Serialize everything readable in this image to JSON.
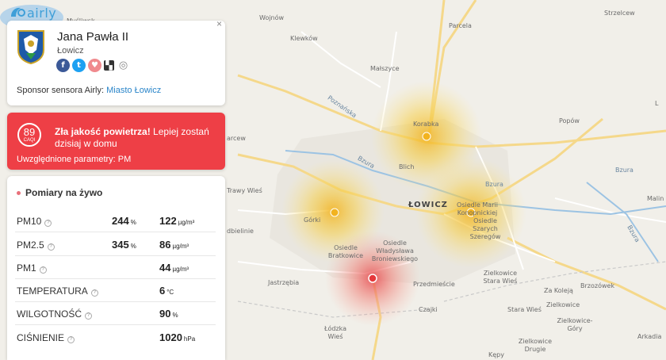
{
  "app": {
    "logo_text": "airly"
  },
  "station": {
    "name": "Jana Pawła II",
    "city": "Łowicz",
    "sponsor_label": "Sponsor sensora Airly:",
    "sponsor_name": "Miasto Łowicz",
    "close": "×",
    "socials": [
      {
        "icon": "facebook-icon",
        "glyph": "f",
        "color": "#3b5998"
      },
      {
        "icon": "twitter-icon",
        "glyph": "t",
        "color": "#1da1f2"
      },
      {
        "icon": "heart-icon",
        "glyph": "♥",
        "color": "#f08a8e"
      },
      {
        "icon": "qr-icon",
        "glyph": "▚",
        "color": "#333333"
      },
      {
        "icon": "locate-icon",
        "glyph": "◎",
        "color": "#ffffff"
      }
    ]
  },
  "alert": {
    "caqi_value": "89",
    "caqi_label": "CAQI",
    "headline": "Zła jakość powietrza!",
    "message": "Lepiej zostań dzisiaj w domu",
    "params": "Uwzględnione parametry: PM",
    "color": "#ee3f46"
  },
  "live": {
    "title": "Pomiary na żywo",
    "rows": [
      {
        "name": "PM10",
        "percent": "244",
        "percent_unit": "%",
        "value": "122",
        "unit": "µg/m³"
      },
      {
        "name": "PM2.5",
        "percent": "345",
        "percent_unit": "%",
        "value": "86",
        "unit": "µg/m³"
      },
      {
        "name": "PM1",
        "percent": "",
        "percent_unit": "",
        "value": "44",
        "unit": "µg/m³"
      },
      {
        "name": "TEMPERATURA",
        "percent": "",
        "percent_unit": "",
        "value": "6",
        "unit": "°C"
      },
      {
        "name": "WILGOTNOŚĆ",
        "percent": "",
        "percent_unit": "",
        "value": "90",
        "unit": "%"
      },
      {
        "name": "CIŚNIENIE",
        "percent": "",
        "percent_unit": "",
        "value": "1020",
        "unit": "hPa"
      }
    ]
  },
  "map": {
    "labels": {
      "wojnow": "Wojnów",
      "klewkow": "Klewków",
      "parcela": "Parcela",
      "malszyce": "Małszyce",
      "poznanska": "Poznańska",
      "bzura_n": "Bzura",
      "korabka": "Korabka",
      "popow": "Popów",
      "arcew": "arcew",
      "bzura_e": "Bzura",
      "bzura_c": "Bzura",
      "bzura_w": "Bzura",
      "blich": "Blich",
      "trawy_wies": "Trawy Wieś",
      "malin": "Malin",
      "lowicz": "ŁOWICZ",
      "gorki": "Górki",
      "osiedle_mkz": "Osiedle Marii Konopnickiej",
      "osiedle_sz": "Osiedle Szarych Szeregów",
      "dbielinie": "dbielinie",
      "os_bratkowice": "Osiedle Bratkowice",
      "os_broniewski": "Osiedle Władysława Broniewskiego",
      "zielkowice_sw": "Zielkowice Stara Wieś",
      "stara_wies": "Stara Wieś",
      "za_koleja": "Za Koleją",
      "brzozowek": "Brzozówek",
      "jastrzebia": "Jastrzębia",
      "przedmiescie": "Przedmieście",
      "zielkowice": "Zielkowice",
      "zielkowice_gory": "Zielkowice-Góry",
      "czajki": "Czajki",
      "lodzka_wies": "Łódzka Wieś",
      "zielkowice_drugie": "Zielkowice Drugie",
      "arkadia": "Arkadia",
      "kepy": "Kępy",
      "strzelcew": "Strzelcew",
      "mysliwsk": "Myśliwsk",
      "l_edge": "L"
    }
  }
}
